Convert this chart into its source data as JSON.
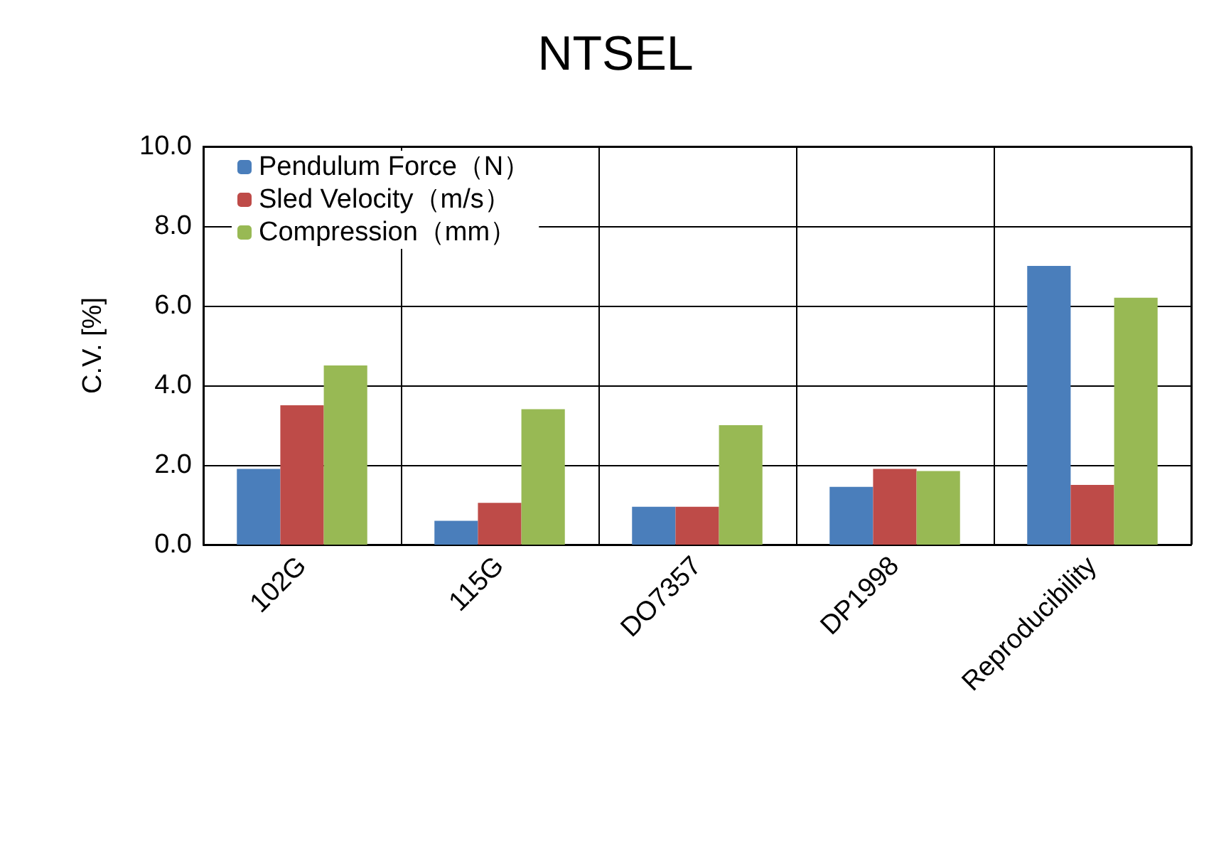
{
  "chart_data": {
    "type": "bar",
    "title": "NTSEL",
    "ylabel": "C.V. [%]",
    "categories": [
      "102G",
      "115G",
      "DO7357",
      "DP1998",
      "Reproducibility"
    ],
    "series": [
      {
        "name": "Pendulum Force（N）",
        "color": "#4a7ebb",
        "values": [
          1.9,
          0.6,
          0.95,
          1.45,
          7.0
        ]
      },
      {
        "name": "Sled Velocity（m/s）",
        "color": "#be4b48",
        "values": [
          3.5,
          1.05,
          0.95,
          1.9,
          1.5
        ]
      },
      {
        "name": "Compression（mm）",
        "color": "#98b954",
        "values": [
          4.5,
          3.4,
          3.0,
          1.85,
          6.2
        ]
      }
    ],
    "ylim": [
      0,
      10
    ],
    "yticks": [
      {
        "value": 0,
        "label": "0.0"
      },
      {
        "value": 2,
        "label": "2.0"
      },
      {
        "value": 4,
        "label": "4.0"
      },
      {
        "value": 6,
        "label": "6.0"
      },
      {
        "value": 8,
        "label": "8.0"
      },
      {
        "value": 10,
        "label": "10.0"
      }
    ],
    "grid": true,
    "legend": "top left"
  }
}
